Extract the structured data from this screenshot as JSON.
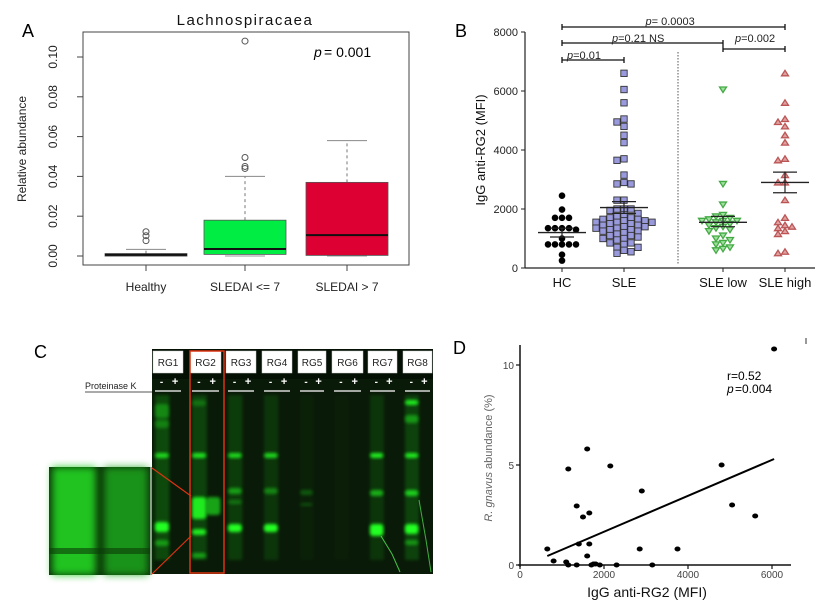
{
  "chart_data": [
    {
      "panel": "A",
      "type": "box",
      "title": "Lachnospiracaea",
      "annotation": {
        "p_symbol": "p",
        "p_text": "= 0.001"
      },
      "ylabel": "Relative abundance",
      "xlabel": "",
      "ylim": [
        0,
        0.11
      ],
      "yticks": [
        0.0,
        0.02,
        0.04,
        0.06,
        0.08,
        0.1
      ],
      "ytick_labels": [
        "0.00",
        "0.02",
        "0.04",
        "0.06",
        "0.08",
        "0.10"
      ],
      "categories": [
        "Healthy",
        "SLEDAI <= 7",
        "SLEDAI > 7"
      ],
      "colors": [
        "#000000",
        "#00ee44",
        "#dd0033"
      ],
      "boxes": [
        {
          "min": 0.0,
          "q1": 0.0003,
          "median": 0.0007,
          "q3": 0.0012,
          "max": 0.0033,
          "outliers": [
            0.0077,
            0.0102,
            0.0122
          ]
        },
        {
          "min": 0.0,
          "q1": 0.0008,
          "median": 0.0035,
          "q3": 0.018,
          "max": 0.04,
          "outliers": [
            0.044,
            0.045,
            0.0495,
            0.108
          ]
        },
        {
          "min": 0.0,
          "q1": 0.0003,
          "median": 0.0105,
          "q3": 0.037,
          "max": 0.058,
          "outliers": []
        }
      ]
    },
    {
      "panel": "B",
      "type": "scatter",
      "ylabel": "IgG anti-RG2 (MFI)",
      "ylim": [
        0,
        8000
      ],
      "yticks": [
        0,
        2000,
        4000,
        6000,
        8000
      ],
      "ytick_labels": [
        "0",
        "2000",
        "4000",
        "6000",
        "8000"
      ],
      "categories": [
        "HC",
        "SLE",
        "SLE low",
        "SLE high"
      ],
      "comparisons": [
        {
          "label_p": "p",
          "label_rest": "= 0.0003",
          "from": "HC",
          "to": "SLE high"
        },
        {
          "label_p": "p",
          "label_rest": "=0.21  NS",
          "from": "HC",
          "to": "SLE low"
        },
        {
          "label_p": "p",
          "label_rest": "=0.002",
          "from": "SLE low",
          "to": "SLE high"
        },
        {
          "label_p": "p",
          "label_rest": "=0.01",
          "from": "HC",
          "to": "SLE"
        }
      ],
      "series": [
        {
          "name": "HC",
          "marker": "circle",
          "color": "#000000",
          "mean": 1200,
          "sem_low": 1050,
          "sem_high": 1350,
          "values": [
            2450,
            1980,
            1700,
            1700,
            1700,
            1350,
            1350,
            1350,
            1350,
            1300,
            1000,
            800,
            800,
            800,
            800,
            800,
            450,
            250
          ]
        },
        {
          "name": "SLE",
          "marker": "square",
          "color": "#9999dd",
          "mean": 2050,
          "sem_low": 1850,
          "sem_high": 2250,
          "values": [
            6600,
            6050,
            5600,
            5050,
            4950,
            4800,
            4500,
            4250,
            3700,
            3650,
            3150,
            2900,
            2850,
            2850,
            2300,
            2300,
            2000,
            2000,
            2000,
            1950,
            1850,
            1800,
            1750,
            1700,
            1700,
            1650,
            1650,
            1600,
            1600,
            1550,
            1550,
            1550,
            1500,
            1500,
            1450,
            1450,
            1400,
            1400,
            1350,
            1350,
            1300,
            1300,
            1250,
            1250,
            1200,
            1150,
            1100,
            1100,
            1050,
            1000,
            1000,
            950,
            850,
            850,
            800,
            700,
            700,
            600,
            550,
            500
          ]
        },
        {
          "name": "SLE low",
          "marker": "triangle-down",
          "color": "#44aa44",
          "mean": 1550,
          "sem_low": 1400,
          "sem_high": 1750,
          "values": [
            6050,
            2850,
            2150,
            1800,
            1750,
            1700,
            1650,
            1600,
            1600,
            1600,
            1550,
            1500,
            1450,
            1400,
            1350,
            1300,
            1250,
            1100,
            1000,
            950,
            850,
            800,
            700,
            650,
            600
          ]
        },
        {
          "name": "SLE high",
          "marker": "triangle-up",
          "color": "#bb5555",
          "mean": 2900,
          "sem_low": 2550,
          "sem_high": 3250,
          "values": [
            6600,
            5600,
            5050,
            4950,
            4800,
            4500,
            4250,
            3700,
            3650,
            3150,
            2900,
            2900,
            2300,
            1700,
            1550,
            1450,
            1400,
            1350,
            1250,
            1150,
            550,
            500
          ]
        }
      ]
    },
    {
      "panel": "D",
      "type": "scatter",
      "annotation": {
        "r_text": "r=0.52",
        "p_symbol": "p",
        "p_text": "=0.004"
      },
      "xlabel": "IgG anti-RG2 (MFI)",
      "ylabel_italic": "R. gnavus",
      "ylabel_rest": "abundance (%)",
      "xlim": [
        0,
        6500
      ],
      "ylim": [
        0,
        11
      ],
      "xticks": [
        0,
        2000,
        4000,
        6000
      ],
      "xtick_labels": [
        "0",
        "2000",
        "4000",
        "6000"
      ],
      "yticks": [
        0,
        5,
        10
      ],
      "ytick_labels": [
        "0",
        "5",
        "10"
      ],
      "points": [
        [
          6050,
          10.8
        ],
        [
          1600,
          5.8
        ],
        [
          1150,
          4.8
        ],
        [
          2150,
          4.95
        ],
        [
          4800,
          5.0
        ],
        [
          2900,
          3.7
        ],
        [
          5050,
          3.0
        ],
        [
          5600,
          2.45
        ],
        [
          1350,
          2.95
        ],
        [
          1650,
          2.6
        ],
        [
          1500,
          2.4
        ],
        [
          1400,
          1.05
        ],
        [
          1650,
          1.05
        ],
        [
          650,
          0.8
        ],
        [
          2850,
          0.8
        ],
        [
          3750,
          0.8
        ],
        [
          1600,
          0.45
        ],
        [
          800,
          0.2
        ],
        [
          1100,
          0.15
        ],
        [
          1150,
          0.0
        ],
        [
          1350,
          0.0
        ],
        [
          1700,
          0.0
        ],
        [
          1750,
          0.05
        ],
        [
          1800,
          0.05
        ],
        [
          1900,
          0.0
        ],
        [
          2300,
          0.0
        ],
        [
          3150,
          0.0
        ]
      ],
      "fit_line": {
        "x": [
          650,
          6050
        ],
        "y": [
          0.45,
          5.3
        ]
      }
    }
  ],
  "panels": {
    "a_label": "A",
    "b_label": "B",
    "c_label": "C",
    "d_label": "D"
  },
  "gel": {
    "treatment_label": "Proteinase K",
    "lanes": [
      "RG1",
      "RG2",
      "RG3",
      "RG4",
      "RG5",
      "RG6",
      "RG7",
      "RG8"
    ],
    "minus": "-",
    "plus": "+",
    "highlight_lane": "RG2",
    "highlight_color": "#dd3311",
    "band_color": "#00ee00"
  }
}
